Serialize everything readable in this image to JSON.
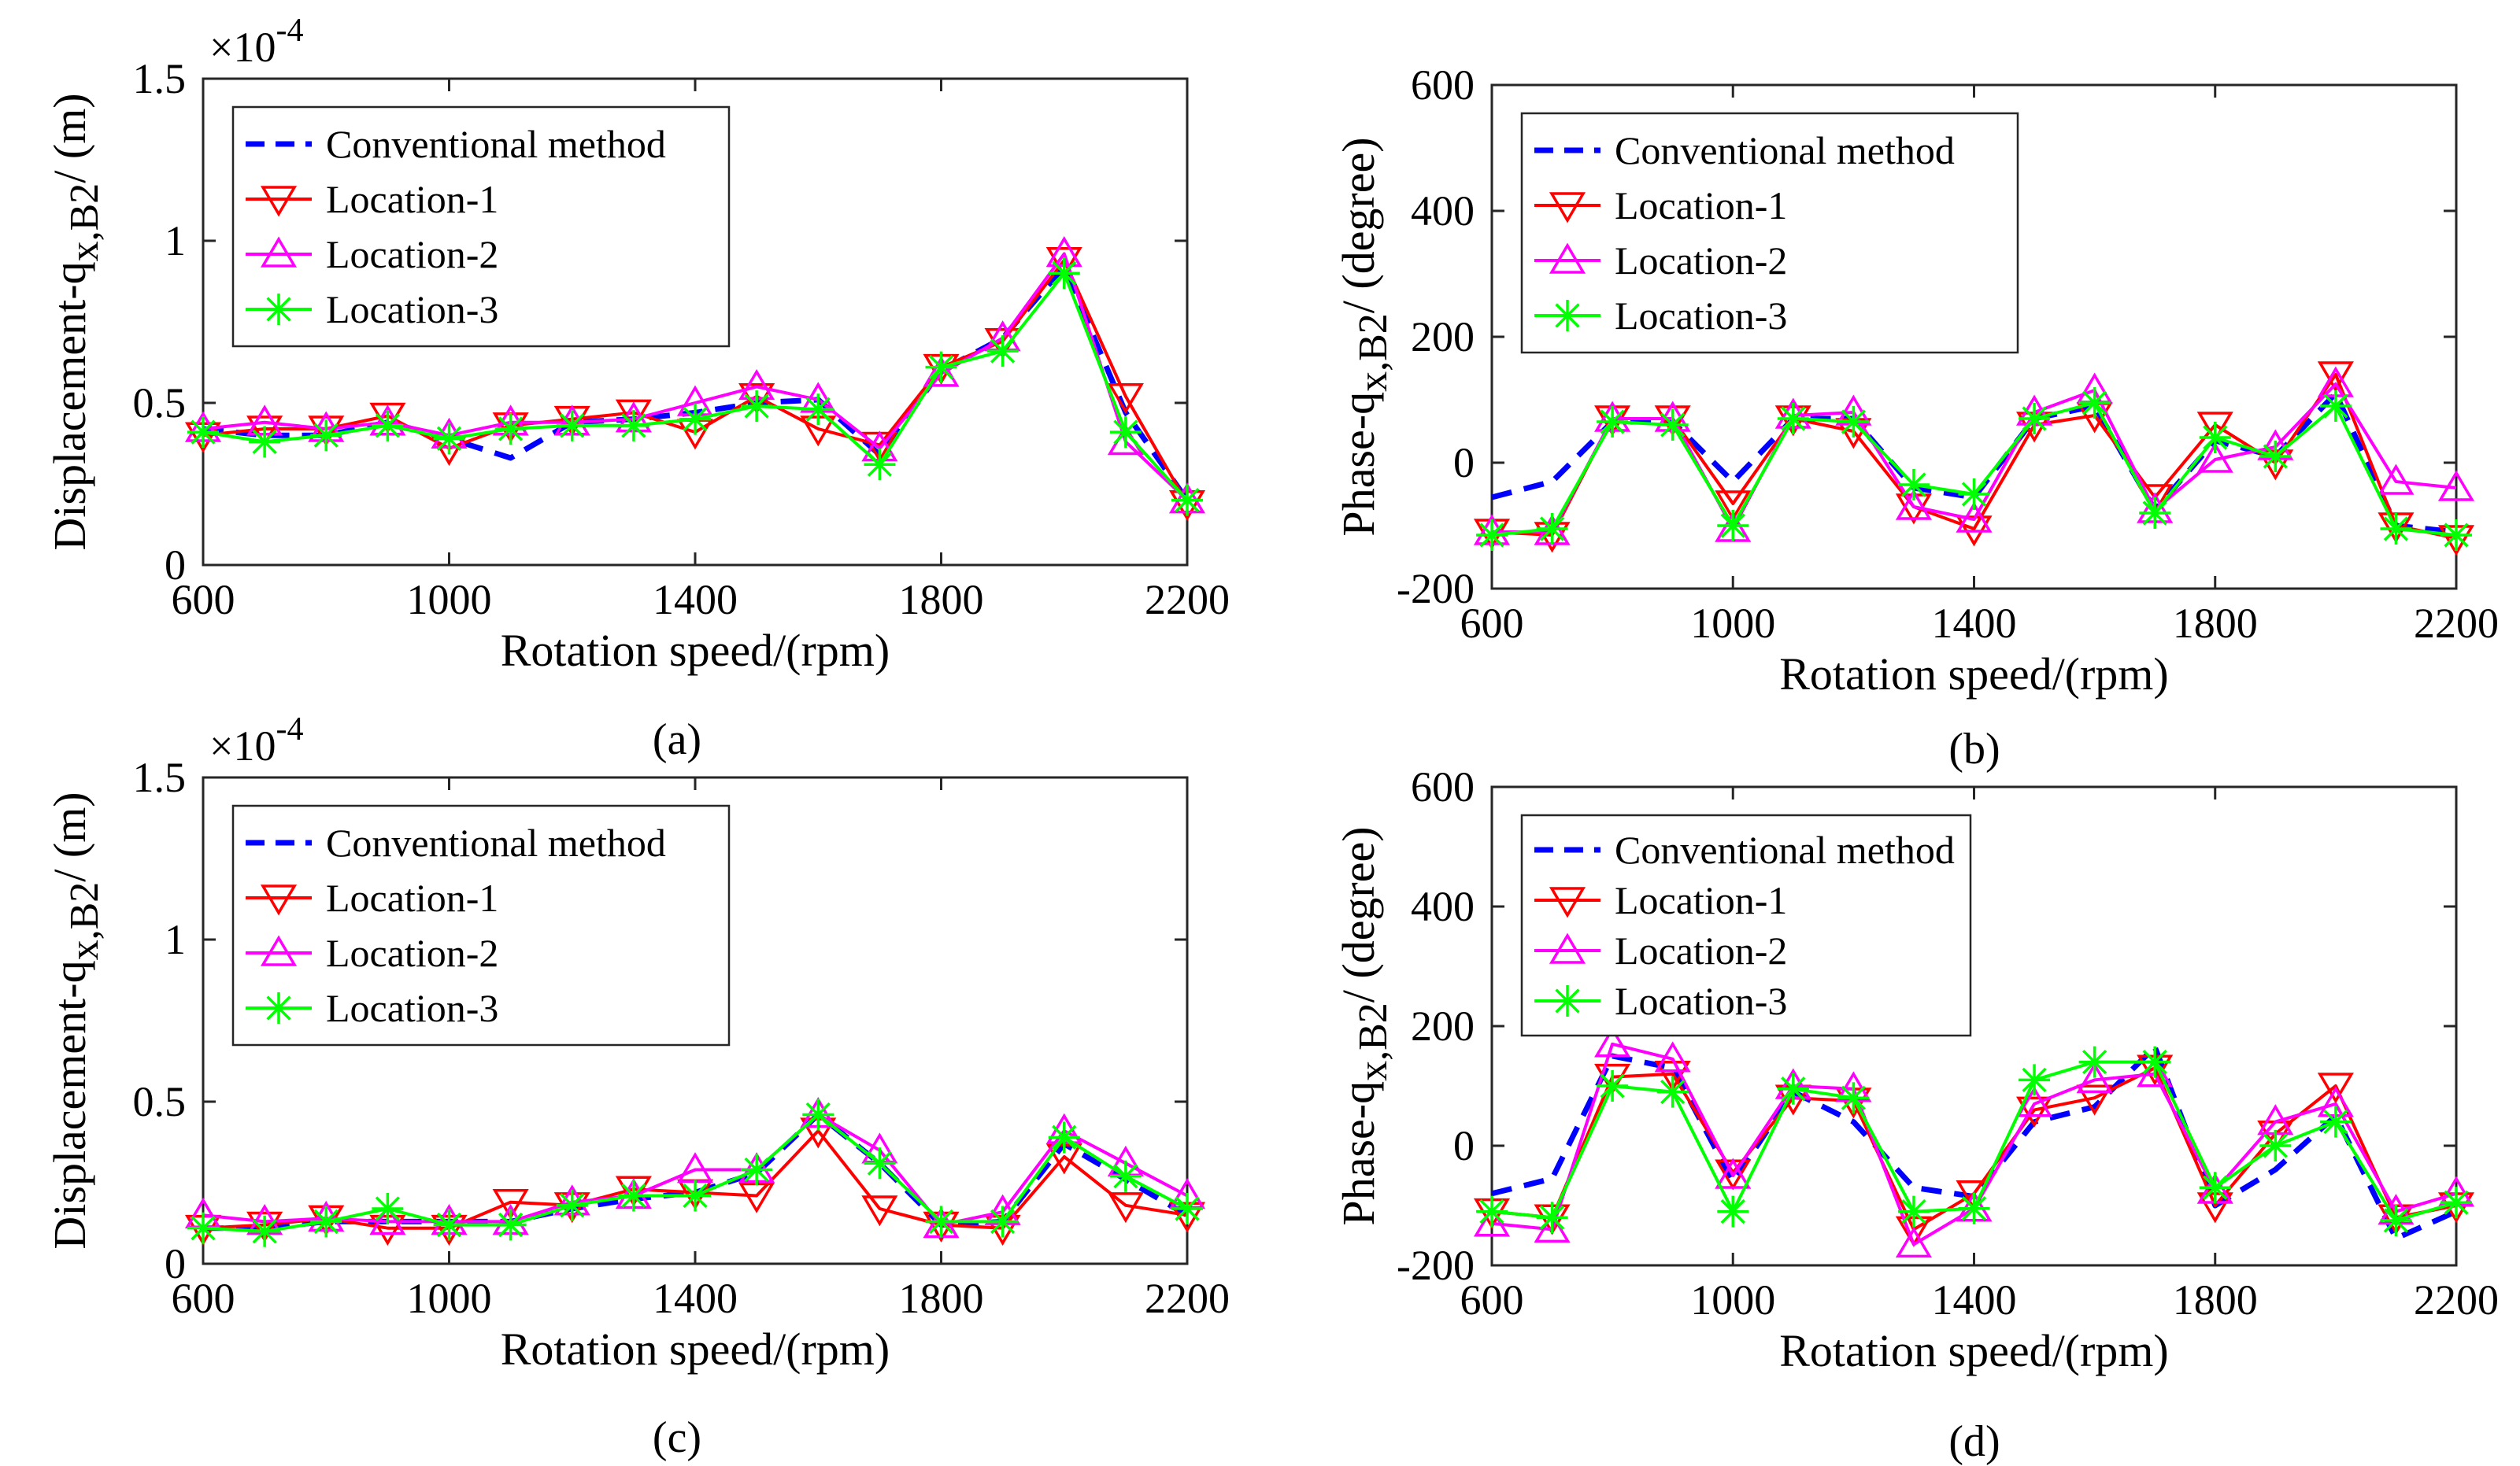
{
  "series_styles": [
    {
      "name": "Conventional method",
      "color": "#0000ff",
      "marker": "none",
      "dash": true
    },
    {
      "name": "Location-1",
      "color": "#ff0000",
      "marker": "triangle-down",
      "dash": false
    },
    {
      "name": "Location-2",
      "color": "#ff00ff",
      "marker": "triangle-up",
      "dash": false
    },
    {
      "name": "Location-3",
      "color": "#00ff00",
      "marker": "asterisk",
      "dash": false
    }
  ],
  "chart_data": [
    {
      "type": "line",
      "caption": "(a)",
      "title": "",
      "xlabel": "Rotation speed/(rpm)",
      "ylabel": {
        "main": "Displacement-q",
        "sub": "x,B2",
        "unit": "/ (m)"
      },
      "exponent": {
        "base": "×10",
        "power": "-4"
      },
      "xlim": [
        600,
        2200
      ],
      "ylim": [
        0,
        1.5
      ],
      "xticks": [
        "600",
        "1000",
        "1400",
        "1800",
        "2200"
      ],
      "yticks": [
        "0",
        "0.5",
        "1",
        "1.5"
      ],
      "legend_position": "top-left",
      "x": [
        600,
        700,
        800,
        900,
        1000,
        1100,
        1200,
        1300,
        1400,
        1500,
        1600,
        1700,
        1800,
        1900,
        2000,
        2100,
        2200
      ],
      "series": [
        {
          "name": "Conventional method",
          "values": [
            0.42,
            0.4,
            0.4,
            0.44,
            0.39,
            0.33,
            0.44,
            0.45,
            0.47,
            0.5,
            0.51,
            0.34,
            0.6,
            0.7,
            0.92,
            0.47,
            0.2
          ]
        },
        {
          "name": "Location-1",
          "values": [
            0.4,
            0.42,
            0.42,
            0.46,
            0.36,
            0.43,
            0.45,
            0.47,
            0.41,
            0.52,
            0.42,
            0.37,
            0.61,
            0.69,
            0.94,
            0.52,
            0.19
          ]
        },
        {
          "name": "Location-2",
          "values": [
            0.42,
            0.44,
            0.42,
            0.44,
            0.4,
            0.44,
            0.44,
            0.45,
            0.5,
            0.55,
            0.51,
            0.36,
            0.59,
            0.7,
            0.96,
            0.38,
            0.2
          ]
        },
        {
          "name": "Location-3",
          "values": [
            0.41,
            0.38,
            0.4,
            0.43,
            0.39,
            0.42,
            0.43,
            0.43,
            0.45,
            0.49,
            0.48,
            0.31,
            0.61,
            0.66,
            0.9,
            0.41,
            0.2
          ]
        }
      ]
    },
    {
      "type": "line",
      "caption": "(b)",
      "title": "",
      "xlabel": "Rotation speed/(rpm)",
      "ylabel": {
        "main": "Phase-q",
        "sub": "x,B2",
        "unit": "/ (degree)"
      },
      "xlim": [
        600,
        2200
      ],
      "ylim": [
        -200,
        600
      ],
      "xticks": [
        "600",
        "1000",
        "1400",
        "1800",
        "2200"
      ],
      "yticks": [
        "-200",
        "0",
        "200",
        "400",
        "600"
      ],
      "legend_position": "top-left",
      "x": [
        600,
        700,
        800,
        900,
        1000,
        1100,
        1200,
        1300,
        1400,
        1500,
        1600,
        1700,
        1800,
        1900,
        2000,
        2100,
        2200
      ],
      "series": [
        {
          "name": "Conventional method",
          "values": [
            -55,
            -30,
            65,
            65,
            -30,
            70,
            70,
            -40,
            -55,
            70,
            90,
            -75,
            35,
            10,
            110,
            -100,
            -110
          ]
        },
        {
          "name": "Location-1",
          "values": [
            -110,
            -115,
            70,
            70,
            -65,
            70,
            50,
            -70,
            -105,
            60,
            75,
            -55,
            60,
            0,
            140,
            -100,
            -120
          ]
        },
        {
          "name": "Location-2",
          "values": [
            -110,
            -110,
            70,
            70,
            -105,
            75,
            80,
            -70,
            -90,
            80,
            115,
            -75,
            5,
            25,
            125,
            -30,
            -40
          ]
        },
        {
          "name": "Location-3",
          "values": [
            -115,
            -105,
            65,
            60,
            -100,
            70,
            65,
            -35,
            -50,
            70,
            95,
            -80,
            40,
            10,
            90,
            -105,
            -115
          ]
        }
      ]
    },
    {
      "type": "line",
      "caption": "(c)",
      "title": "",
      "xlabel": "Rotation speed/(rpm)",
      "ylabel": {
        "main": "Displacement-q",
        "sub": "x,B2",
        "unit": "/ (m)"
      },
      "exponent": {
        "base": "×10",
        "power": "-4"
      },
      "xlim": [
        600,
        2200
      ],
      "ylim": [
        0,
        1.5
      ],
      "xticks": [
        "600",
        "1000",
        "1400",
        "1800",
        "2200"
      ],
      "yticks": [
        "0",
        "0.5",
        "1",
        "1.5"
      ],
      "legend_position": "top-left",
      "x": [
        600,
        700,
        800,
        900,
        1000,
        1100,
        1200,
        1300,
        1400,
        1500,
        1600,
        1700,
        1800,
        1900,
        2000,
        2100,
        2200
      ],
      "series": [
        {
          "name": "Conventional method",
          "values": [
            0.11,
            0.11,
            0.13,
            0.13,
            0.13,
            0.13,
            0.17,
            0.2,
            0.22,
            0.28,
            0.46,
            0.31,
            0.12,
            0.13,
            0.37,
            0.26,
            0.15
          ]
        },
        {
          "name": "Location-1",
          "values": [
            0.11,
            0.12,
            0.14,
            0.11,
            0.11,
            0.19,
            0.18,
            0.23,
            0.22,
            0.21,
            0.41,
            0.17,
            0.12,
            0.11,
            0.33,
            0.18,
            0.15
          ]
        },
        {
          "name": "Location-2",
          "values": [
            0.15,
            0.13,
            0.14,
            0.13,
            0.13,
            0.13,
            0.19,
            0.21,
            0.29,
            0.29,
            0.46,
            0.35,
            0.12,
            0.16,
            0.41,
            0.31,
            0.21
          ]
        },
        {
          "name": "Location-3",
          "values": [
            0.11,
            0.1,
            0.13,
            0.17,
            0.12,
            0.12,
            0.18,
            0.21,
            0.21,
            0.29,
            0.46,
            0.31,
            0.13,
            0.13,
            0.39,
            0.27,
            0.17
          ]
        }
      ]
    },
    {
      "type": "line",
      "caption": "(d)",
      "title": "",
      "xlabel": "Rotation speed/(rpm)",
      "ylabel": {
        "main": "Phase-q",
        "sub": "x,B2",
        "unit": "/ (degree)"
      },
      "xlim": [
        600,
        2200
      ],
      "ylim": [
        -200,
        600
      ],
      "xticks": [
        "600",
        "1000",
        "1400",
        "1800",
        "2200"
      ],
      "yticks": [
        "-200",
        "0",
        "200",
        "400",
        "600"
      ],
      "legend_position": "top-left",
      "x": [
        600,
        700,
        800,
        900,
        1000,
        1100,
        1200,
        1300,
        1400,
        1500,
        1600,
        1700,
        1800,
        1900,
        2000,
        2100,
        2200
      ],
      "series": [
        {
          "name": "Conventional method",
          "values": [
            -80,
            -55,
            150,
            130,
            -60,
            90,
            40,
            -70,
            -85,
            40,
            65,
            165,
            -100,
            -40,
            50,
            -155,
            -110
          ]
        },
        {
          "name": "Location-1",
          "values": [
            -110,
            -120,
            115,
            120,
            -45,
            80,
            75,
            -140,
            -80,
            60,
            80,
            130,
            -100,
            20,
            100,
            -120,
            -100
          ]
        },
        {
          "name": "Location-2",
          "values": [
            -130,
            -140,
            170,
            145,
            -50,
            100,
            95,
            -165,
            -105,
            70,
            110,
            120,
            -75,
            40,
            70,
            -110,
            -80
          ]
        },
        {
          "name": "Location-3",
          "values": [
            -110,
            -120,
            100,
            90,
            -110,
            95,
            80,
            -110,
            -105,
            110,
            140,
            140,
            -70,
            0,
            40,
            -125,
            -95
          ]
        }
      ]
    }
  ]
}
